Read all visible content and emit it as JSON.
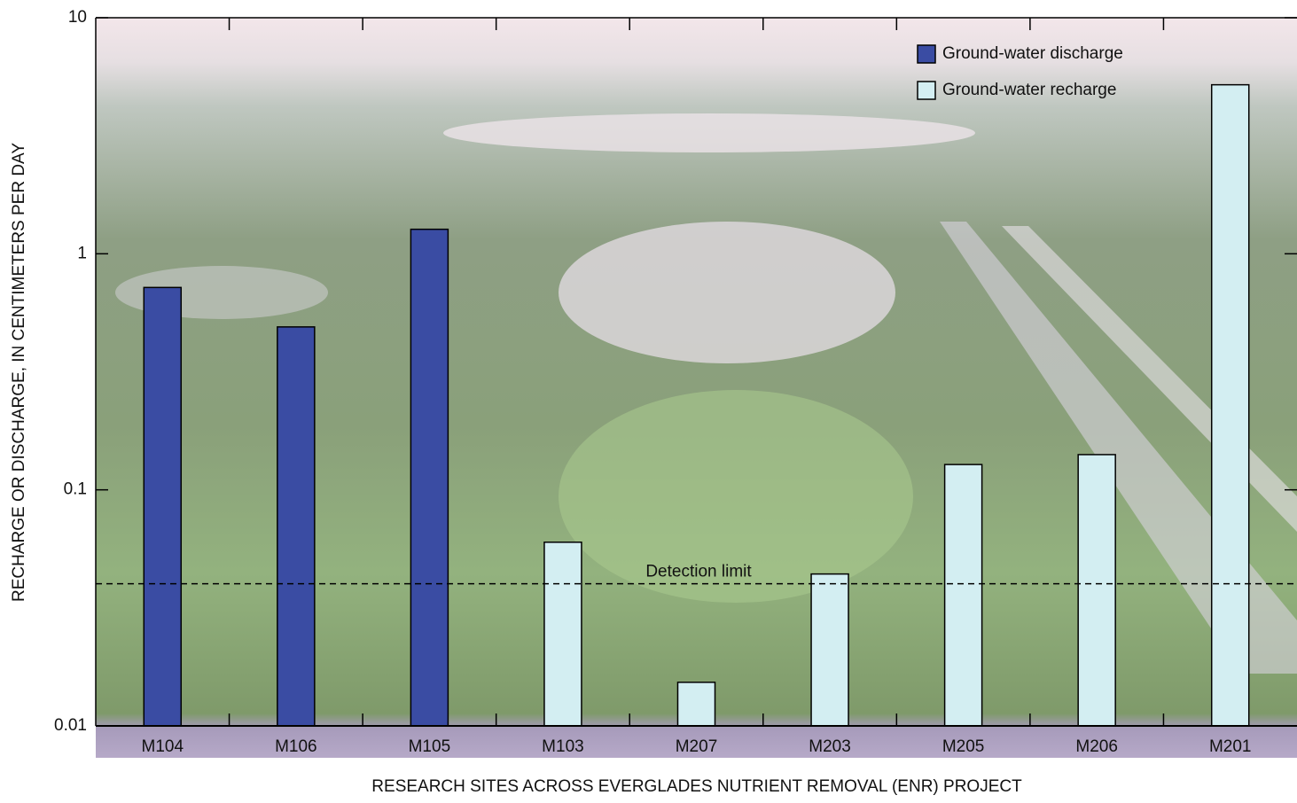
{
  "chart_data": {
    "type": "bar",
    "log_scale": true,
    "y_label": "RECHARGE OR DISCHARGE, IN CENTIMETERS PER DAY",
    "x_label": "RESEARCH SITES ACROSS EVERGLADES NUTRIENT REMOVAL (ENR) PROJECT",
    "categories": [
      "M104",
      "M106",
      "M105",
      "M103",
      "M207",
      "M203",
      "M205",
      "M206",
      "M201"
    ],
    "series": [
      {
        "name": "Ground-water discharge",
        "color": "#3a4ca3",
        "values": [
          0.72,
          0.49,
          1.27,
          null,
          null,
          null,
          null,
          null,
          null
        ]
      },
      {
        "name": "Ground-water recharge",
        "color": "#d3eef2",
        "values": [
          null,
          null,
          null,
          0.06,
          0.0153,
          0.044,
          0.128,
          0.141,
          5.2
        ]
      }
    ],
    "ylim": [
      0.01,
      10
    ],
    "yticks": [
      0.01,
      0.1,
      1,
      10
    ],
    "detection_limit": {
      "label": "Detection limit",
      "value": 0.04
    },
    "legend": "upper right"
  }
}
